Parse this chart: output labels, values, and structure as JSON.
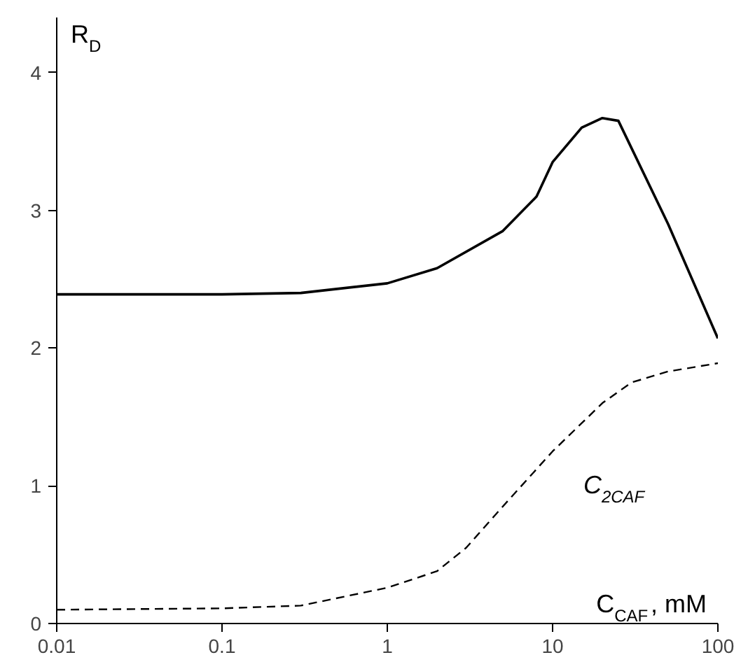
{
  "chart_data": {
    "type": "line",
    "xlabel": "C$_{CAF}$, mM",
    "ylabel": "R$_{D}$",
    "log": "x",
    "grid": false,
    "xlim": [
      0.01,
      100
    ],
    "ylim": [
      0,
      4.4
    ],
    "xticks": [
      0.01,
      0.1,
      1,
      10,
      100
    ],
    "yticks": [
      0,
      1,
      2,
      3,
      4
    ],
    "series": [
      {
        "color": "#000000",
        "line_style": "solid",
        "x": [
          0.01,
          0.1,
          0.3,
          1,
          2,
          5,
          8,
          10,
          15,
          20,
          25,
          50,
          100
        ],
        "values": [
          2.39,
          2.39,
          2.4,
          2.47,
          2.58,
          2.85,
          3.1,
          3.35,
          3.6,
          3.67,
          3.65,
          2.9,
          2.07
        ]
      },
      {
        "name": "C$_{2CAF}$",
        "color": "#000000",
        "line_style": "dashed",
        "x": [
          0.01,
          0.1,
          0.3,
          1,
          2,
          3,
          5,
          10,
          20,
          30,
          50,
          100
        ],
        "values": [
          0.1,
          0.11,
          0.13,
          0.26,
          0.38,
          0.55,
          0.85,
          1.25,
          1.6,
          1.75,
          1.83,
          1.89
        ]
      }
    ]
  }
}
